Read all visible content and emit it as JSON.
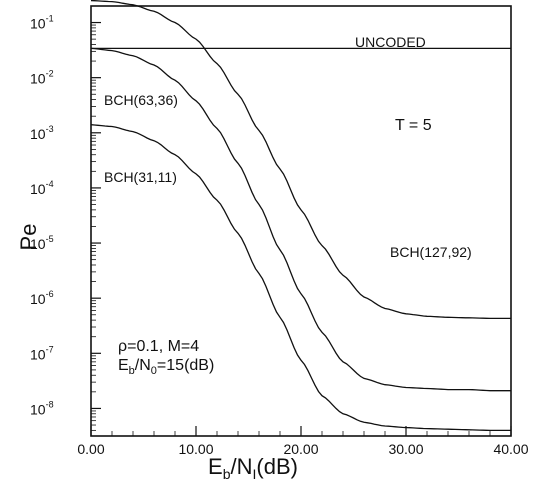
{
  "chart_data": {
    "type": "line",
    "xlabel": "E_b/N_I(dB)",
    "xlabel_main": "E",
    "xlabel_sub1": "b",
    "xlabel_mid": "/N",
    "xlabel_sub2": "I",
    "xlabel_end": "(dB)",
    "ylabel": "Pe",
    "xlim": [
      0,
      40
    ],
    "ylim_log10": [
      -8.5,
      -0.7
    ],
    "yscale": "log",
    "x_ticks": [
      "0.00",
      "10.00",
      "20.00",
      "30.00",
      "40.00"
    ],
    "y_ticks": [
      {
        "base": "10",
        "exp": "-1"
      },
      {
        "base": "10",
        "exp": "-2"
      },
      {
        "base": "10",
        "exp": "-3"
      },
      {
        "base": "10",
        "exp": "-4"
      },
      {
        "base": "10",
        "exp": "-5"
      },
      {
        "base": "10",
        "exp": "-6"
      },
      {
        "base": "10",
        "exp": "-7"
      },
      {
        "base": "10",
        "exp": "-8"
      }
    ],
    "series": [
      {
        "name": "UNCODED",
        "x": [
          0,
          10,
          20,
          30,
          40
        ],
        "y": [
          0.034,
          0.034,
          0.034,
          0.034,
          0.034
        ]
      },
      {
        "name": "BCH(127,92)",
        "x": [
          0,
          2,
          4,
          6,
          8,
          10,
          12,
          14,
          16,
          18,
          20,
          22,
          24,
          26,
          28,
          30,
          32,
          34,
          36,
          38,
          40
        ],
        "y": [
          0.25,
          0.24,
          0.21,
          0.16,
          0.1,
          0.05,
          0.018,
          0.005,
          0.0011,
          0.00022,
          4e-05,
          9e-06,
          2.6e-06,
          1.05e-06,
          6.5e-07,
          5.2e-07,
          4.7e-07,
          4.5e-07,
          4.4e-07,
          4.3e-07,
          4.3e-07
        ]
      },
      {
        "name": "BCH(63,36)",
        "x": [
          0,
          2,
          4,
          6,
          8,
          10,
          12,
          14,
          16,
          18,
          20,
          22,
          24,
          26,
          28,
          30,
          32,
          34,
          36,
          38,
          40
        ],
        "y": [
          0.034,
          0.031,
          0.025,
          0.017,
          0.009,
          0.0038,
          0.0012,
          0.00028,
          5e-05,
          7.5e-06,
          1.2e-06,
          2.4e-07,
          7e-08,
          3.5e-08,
          2.7e-08,
          2.4e-08,
          2.3e-08,
          2.2e-08,
          2.2e-08,
          2.1e-08,
          2.1e-08
        ]
      },
      {
        "name": "BCH(31,11)",
        "x": [
          0,
          2,
          4,
          6,
          8,
          10,
          12,
          14,
          16,
          18,
          20,
          22,
          24,
          26,
          28,
          30,
          32,
          34,
          36,
          38,
          40
        ],
        "y": [
          0.0014,
          0.0013,
          0.00105,
          0.00072,
          0.0004,
          0.00018,
          6e-05,
          1.5e-05,
          2.8e-06,
          4.5e-07,
          7.5e-08,
          1.7e-08,
          8e-09,
          5.6e-09,
          4.8e-09,
          4.5e-09,
          4.3e-09,
          4.2e-09,
          4.1e-09,
          4e-09,
          4e-09
        ]
      }
    ],
    "series_labels": {
      "uncoded": "UNCODED",
      "bch63": "BCH(63,36)",
      "bch31": "BCH(31,11)",
      "bch127": "BCH(127,92)"
    },
    "annotations": {
      "T_label": "T  =  5",
      "rho_line": "ρ=0.1,  M=4",
      "ebn0_main": "E",
      "ebn0_sub1": "b",
      "ebn0_mid": "/N",
      "ebn0_sub2": "0",
      "ebn0_end": "=15(dB)"
    },
    "legend": "none",
    "grid": false
  }
}
